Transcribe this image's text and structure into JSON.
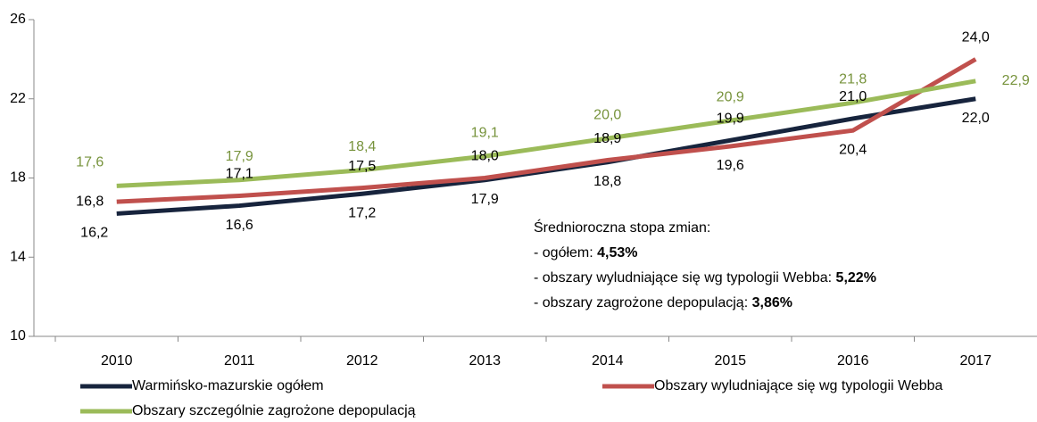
{
  "chart_data": {
    "type": "line",
    "categories": [
      "2010",
      "2011",
      "2012",
      "2013",
      "2014",
      "2015",
      "2016",
      "2017"
    ],
    "ylim": [
      10,
      26
    ],
    "yticks": [
      10,
      14,
      18,
      22,
      26
    ],
    "series": [
      {
        "name": "Warmińsko-mazurskie ogółem",
        "color": "#17243d",
        "values": [
          16.2,
          16.6,
          17.2,
          17.9,
          18.8,
          19.9,
          21.0,
          22.0
        ],
        "value_labels": [
          "16,2",
          "16,6",
          "17,2",
          "17,9",
          "18,8",
          "19,9",
          "21,0",
          "22,0"
        ]
      },
      {
        "name": "Obszary wyludniające się wg typologii Webba",
        "color": "#c0504d",
        "values": [
          16.8,
          17.1,
          17.5,
          18.0,
          18.9,
          19.6,
          20.4,
          24.0
        ],
        "value_labels": [
          "16,8",
          "17,1",
          "17,5",
          "18,0",
          "18,9",
          "19,6",
          "20,4",
          "24,0"
        ]
      },
      {
        "name": "Obszary szczególnie zagrożone depopulacją",
        "color": "#9bbb59",
        "values": [
          17.6,
          17.9,
          18.4,
          19.1,
          20.0,
          20.9,
          21.8,
          22.9
        ],
        "value_labels": [
          "17,6",
          "17,9",
          "18,4",
          "19,1",
          "20,0",
          "20,9",
          "21,8",
          "22,9"
        ]
      }
    ],
    "annotation": {
      "title": "Średnioroczna stopa zmian:",
      "items": [
        {
          "label": "- ogółem: ",
          "value": "4,53%"
        },
        {
          "label": "- obszary wyludniające się wg typologii Webba: ",
          "value": "5,22%"
        },
        {
          "label": "- obszary zagrożone depopulacją: ",
          "value": "3,86%"
        }
      ]
    }
  }
}
